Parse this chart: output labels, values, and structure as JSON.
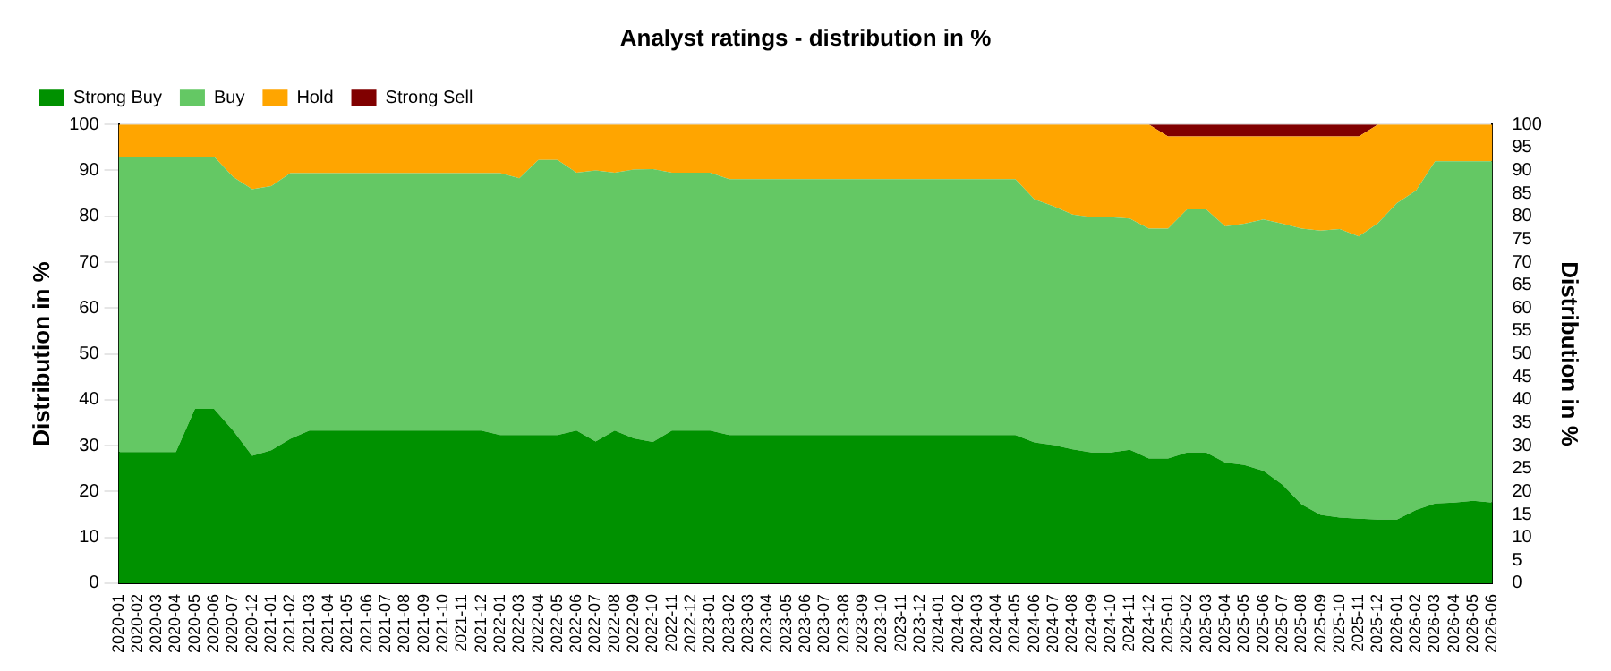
{
  "chart_data": {
    "type": "area",
    "title": "Analyst ratings - distribution in %",
    "ylabel": "Distribution in %",
    "y2label": "Distribution in %",
    "categories": [
      "2020-01",
      "2020-02",
      "2020-03",
      "2020-04",
      "2020-05",
      "2020-06",
      "2020-07",
      "2020-12",
      "2021-01",
      "2021-02",
      "2021-03",
      "2021-04",
      "2021-05",
      "2021-06",
      "2021-07",
      "2021-08",
      "2021-09",
      "2021-10",
      "2021-11",
      "2021-12",
      "2022-01",
      "2022-03",
      "2022-04",
      "2022-05",
      "2022-06",
      "2022-07",
      "2022-08",
      "2022-09",
      "2022-10",
      "2022-11",
      "2022-12",
      "2023-01",
      "2023-02",
      "2023-03",
      "2023-04",
      "2023-05",
      "2023-06",
      "2023-07",
      "2023-08",
      "2023-09",
      "2023-10",
      "2023-11",
      "2023-12",
      "2024-01",
      "2024-02",
      "2024-03",
      "2024-04",
      "2024-05",
      "2024-06",
      "2024-07",
      "2024-08",
      "2024-09",
      "2024-10",
      "2024-11",
      "2024-12",
      "2025-01",
      "2025-02",
      "2025-03",
      "2025-04",
      "2025-05",
      "2025-06",
      "2025-07",
      "2025-08",
      "2025-09",
      "2025-10",
      "2025-11",
      "2025-12",
      "2026-01",
      "2026-02",
      "2026-03",
      "2026-04",
      "2026-05",
      "2026-06"
    ],
    "stacked": true,
    "series": [
      {
        "name": "Strong Buy",
        "color": "#009100",
        "values": [
          28.6,
          28.6,
          28.6,
          28.6,
          38,
          38,
          33.3,
          27.8,
          29,
          31.5,
          33.3,
          33.3,
          33.3,
          33.3,
          33.3,
          33.3,
          33.3,
          33.3,
          33.3,
          33.3,
          32.3,
          32.3,
          32.3,
          32.3,
          33.3,
          30.9,
          33.3,
          31.6,
          30.8,
          33.3,
          33.3,
          33.3,
          32.3,
          32.3,
          32.3,
          32.3,
          32.3,
          32.3,
          32.3,
          32.3,
          32.3,
          32.3,
          32.3,
          32.3,
          32.3,
          32.3,
          32.3,
          32.3,
          30.7,
          30.1,
          29.2,
          28.5,
          28.5,
          29.1,
          27.2,
          27.2,
          28.5,
          28.5,
          26.3,
          25.8,
          24.5,
          21.5,
          17.2,
          14.9,
          14.3,
          14.1,
          13.9,
          13.9,
          16,
          17.4,
          17.6,
          18,
          17.6
        ]
      },
      {
        "name": "Buy",
        "color": "#64c864",
        "values": [
          64.4,
          64.4,
          64.4,
          64.4,
          55,
          55,
          55.3,
          58.1,
          57.6,
          57.9,
          56.1,
          56.1,
          56.1,
          56.1,
          56.1,
          56.1,
          56.1,
          56.1,
          56.1,
          56.1,
          57.1,
          56,
          60,
          60,
          56.2,
          59.1,
          56.2,
          58.6,
          59.5,
          56.2,
          56.2,
          56.2,
          55.8,
          55.8,
          55.8,
          55.8,
          55.8,
          55.8,
          55.8,
          55.8,
          55.8,
          55.8,
          55.8,
          55.8,
          55.8,
          55.8,
          55.8,
          55.8,
          53,
          52.1,
          51.2,
          51.3,
          51.3,
          50.4,
          50.1,
          50.1,
          53,
          53,
          51.5,
          52.6,
          54.8,
          56.9,
          60.1,
          62,
          62.9,
          61.5,
          64.6,
          69,
          69.6,
          74.6,
          74.4,
          74,
          74.4
        ]
      },
      {
        "name": "Hold",
        "color": "#ffa500",
        "values": [
          7,
          7,
          7,
          7,
          7,
          7,
          11.4,
          14.1,
          13.4,
          10.6,
          10.6,
          10.6,
          10.6,
          10.6,
          10.6,
          10.6,
          10.6,
          10.6,
          10.6,
          10.6,
          10.6,
          11.7,
          7.7,
          7.7,
          10.5,
          10,
          10.5,
          9.8,
          9.7,
          10.5,
          10.5,
          10.5,
          11.9,
          11.9,
          11.9,
          11.9,
          11.9,
          11.9,
          11.9,
          11.9,
          11.9,
          11.9,
          11.9,
          11.9,
          11.9,
          11.9,
          11.9,
          11.9,
          16.3,
          17.8,
          19.6,
          20.2,
          20.2,
          20.5,
          22.7,
          20.1,
          15.9,
          15.9,
          19.6,
          19,
          18.1,
          19,
          20.1,
          20.5,
          20.2,
          21.8,
          21.5,
          17.1,
          14.4,
          8,
          8,
          8,
          8
        ]
      },
      {
        "name": "Strong Sell",
        "color": "#800000",
        "values": [
          0,
          0,
          0,
          0,
          0,
          0,
          0,
          0,
          0,
          0,
          0,
          0,
          0,
          0,
          0,
          0,
          0,
          0,
          0,
          0,
          0,
          0,
          0,
          0,
          0,
          0,
          0,
          0,
          0,
          0,
          0,
          0,
          0,
          0,
          0,
          0,
          0,
          0,
          0,
          0,
          0,
          0,
          0,
          0,
          0,
          0,
          0,
          0,
          0,
          0,
          0,
          0,
          0,
          0,
          0,
          2.6,
          2.6,
          2.6,
          2.6,
          2.6,
          2.6,
          2.6,
          2.6,
          2.6,
          2.6,
          2.6,
          0,
          0,
          0,
          0,
          0,
          0,
          0
        ]
      }
    ],
    "ylim": [
      0,
      100
    ],
    "yticks": [
      0,
      10,
      20,
      30,
      40,
      50,
      60,
      70,
      80,
      90,
      100
    ],
    "y2lim": [
      0,
      100
    ],
    "y2ticks": [
      0,
      5,
      10,
      15,
      20,
      25,
      30,
      35,
      40,
      45,
      50,
      55,
      60,
      65,
      70,
      75,
      80,
      85,
      90,
      95,
      100
    ],
    "grid": "y",
    "legend": "top left",
    "marker": "none"
  }
}
